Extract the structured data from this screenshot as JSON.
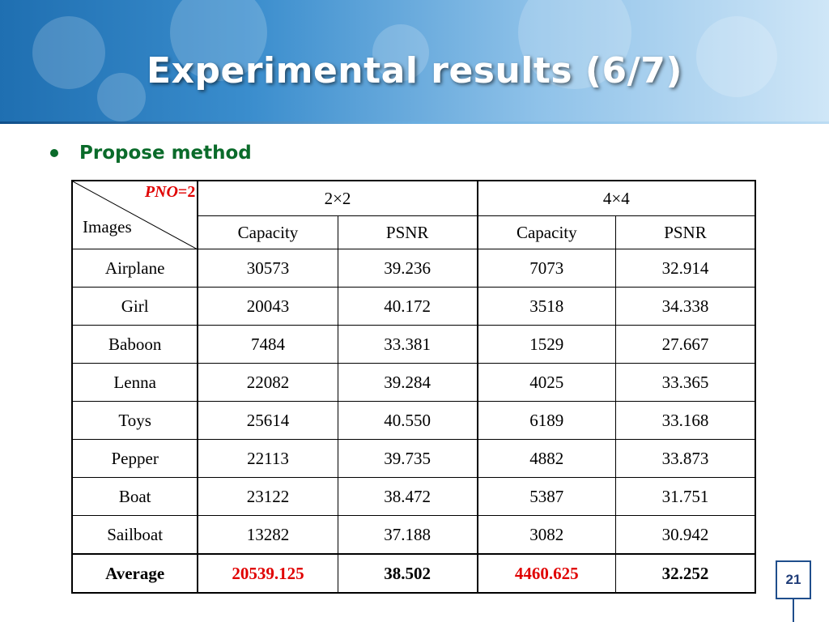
{
  "title": "Experimental results (6/7)",
  "bullet": "Propose method",
  "table": {
    "corner": {
      "pno_var": "PNO",
      "pno_value": "=2",
      "images_label": "Images"
    },
    "groups": [
      "2×2",
      "4×4"
    ],
    "subheaders": [
      "Capacity",
      "PSNR",
      "Capacity",
      "PSNR"
    ],
    "rows": [
      {
        "image": "Airplane",
        "c2": "30573",
        "p2": "39.236",
        "c4": "7073",
        "p4": "32.914"
      },
      {
        "image": "Girl",
        "c2": "20043",
        "p2": "40.172",
        "c4": "3518",
        "p4": "34.338"
      },
      {
        "image": "Baboon",
        "c2": "7484",
        "p2": "33.381",
        "c4": "1529",
        "p4": "27.667"
      },
      {
        "image": "Lenna",
        "c2": "22082",
        "p2": "39.284",
        "c4": "4025",
        "p4": "33.365"
      },
      {
        "image": "Toys",
        "c2": "25614",
        "p2": "40.550",
        "c4": "6189",
        "p4": "33.168"
      },
      {
        "image": "Pepper",
        "c2": "22113",
        "p2": "39.735",
        "c4": "4882",
        "p4": "33.873"
      },
      {
        "image": "Boat",
        "c2": "23122",
        "p2": "38.472",
        "c4": "5387",
        "p4": "31.751"
      },
      {
        "image": "Sailboat",
        "c2": "13282",
        "p2": "37.188",
        "c4": "3082",
        "p4": "30.942"
      }
    ],
    "average": {
      "label": "Average",
      "c2": "20539.125",
      "p2": "38.502",
      "c4": "4460.625",
      "p4": "32.252"
    }
  },
  "page_number": "21",
  "colors": {
    "title_text": "#ffffff",
    "bullet": "#0a6b2a",
    "highlight": "#e00000",
    "page_box": "#1f4e8c"
  }
}
